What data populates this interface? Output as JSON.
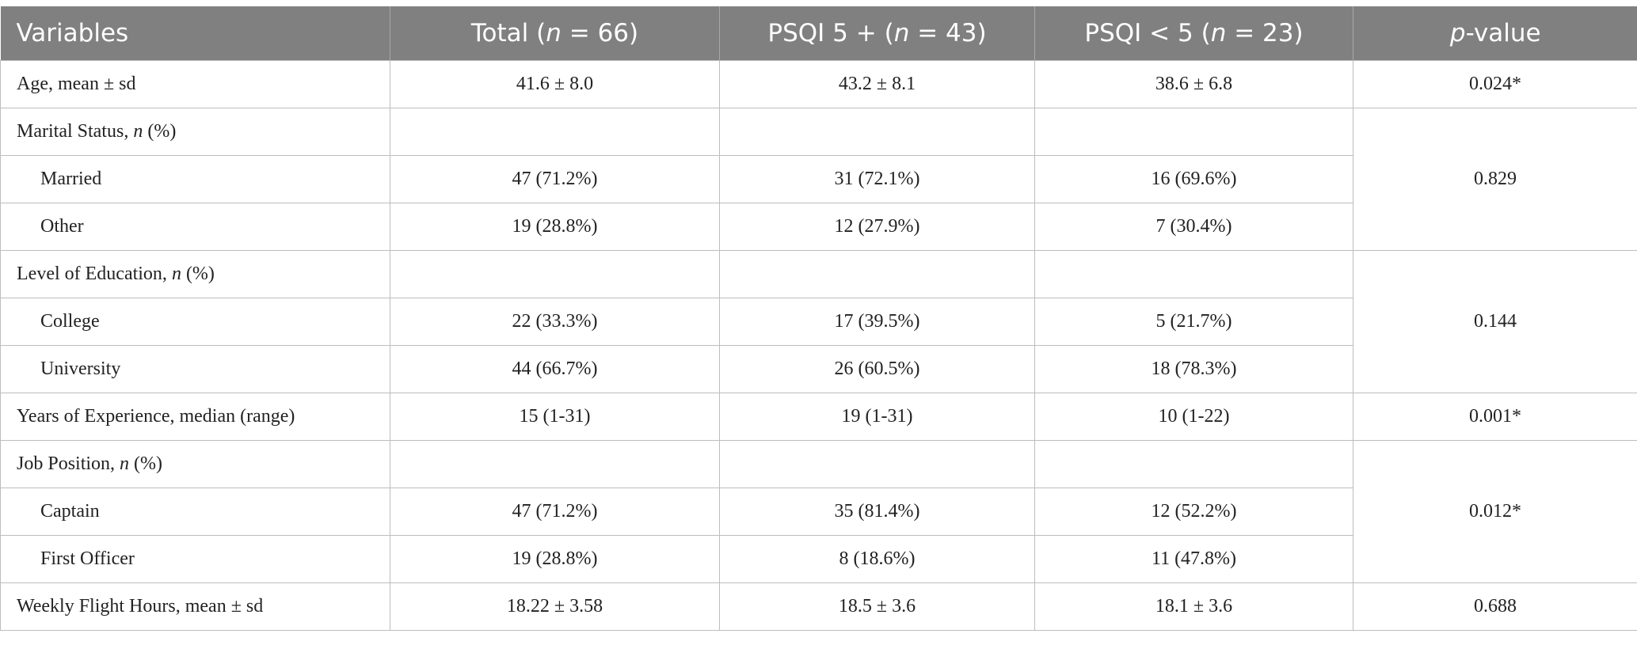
{
  "table": {
    "header": [
      [
        {
          "text": "Variables"
        }
      ],
      [
        {
          "text": "Total ("
        },
        {
          "text": "n",
          "italic": true
        },
        {
          "text": " = 66)"
        }
      ],
      [
        {
          "text": "PSQI 5 + ("
        },
        {
          "text": "n",
          "italic": true
        },
        {
          "text": " = 43)"
        }
      ],
      [
        {
          "text": "PSQI < 5 ("
        },
        {
          "text": "n",
          "italic": true
        },
        {
          "text": " = 23)"
        }
      ],
      [
        {
          "text": "p",
          "italic": true
        },
        {
          "text": "-value"
        }
      ]
    ],
    "groups": [
      {
        "label": [
          {
            "text": "Age, mean ± sd"
          }
        ],
        "values": [
          "41.6 ± 8.0",
          "43.2 ± 8.1",
          "38.6 ± 6.8"
        ],
        "p": "0.024*"
      },
      {
        "label": [
          {
            "text": "Marital Status, "
          },
          {
            "text": "n",
            "italic": true
          },
          {
            "text": " (%)"
          }
        ],
        "p": "0.829",
        "subrows": [
          {
            "label": "Married",
            "values": [
              "47 (71.2%)",
              "31 (72.1%)",
              "16 (69.6%)"
            ]
          },
          {
            "label": "Other",
            "values": [
              "19 (28.8%)",
              "12 (27.9%)",
              "7 (30.4%)"
            ]
          }
        ]
      },
      {
        "label": [
          {
            "text": "Level of Education, "
          },
          {
            "text": "n",
            "italic": true
          },
          {
            "text": " (%)"
          }
        ],
        "p": "0.144",
        "subrows": [
          {
            "label": "College",
            "values": [
              "22 (33.3%)",
              "17 (39.5%)",
              "5 (21.7%)"
            ]
          },
          {
            "label": "University",
            "values": [
              "44 (66.7%)",
              "26 (60.5%)",
              "18 (78.3%)"
            ]
          }
        ]
      },
      {
        "label": [
          {
            "text": "Years of Experience, median (range)"
          }
        ],
        "values": [
          "15 (1-31)",
          "19 (1-31)",
          "10 (1-22)"
        ],
        "p": "0.001*"
      },
      {
        "label": [
          {
            "text": "Job Position, "
          },
          {
            "text": "n",
            "italic": true
          },
          {
            "text": " (%)"
          }
        ],
        "p": "0.012*",
        "subrows": [
          {
            "label": "Captain",
            "values": [
              "47 (71.2%)",
              "35 (81.4%)",
              "12 (52.2%)"
            ]
          },
          {
            "label": "First Officer",
            "values": [
              "19 (28.8%)",
              "8 (18.6%)",
              "11 (47.8%)"
            ]
          }
        ]
      },
      {
        "label": [
          {
            "text": "Weekly Flight Hours, mean ± sd"
          }
        ],
        "values": [
          "18.22 ± 3.58",
          "18.5 ± 3.6",
          "18.1 ± 3.6"
        ],
        "p": "0.688"
      }
    ]
  }
}
